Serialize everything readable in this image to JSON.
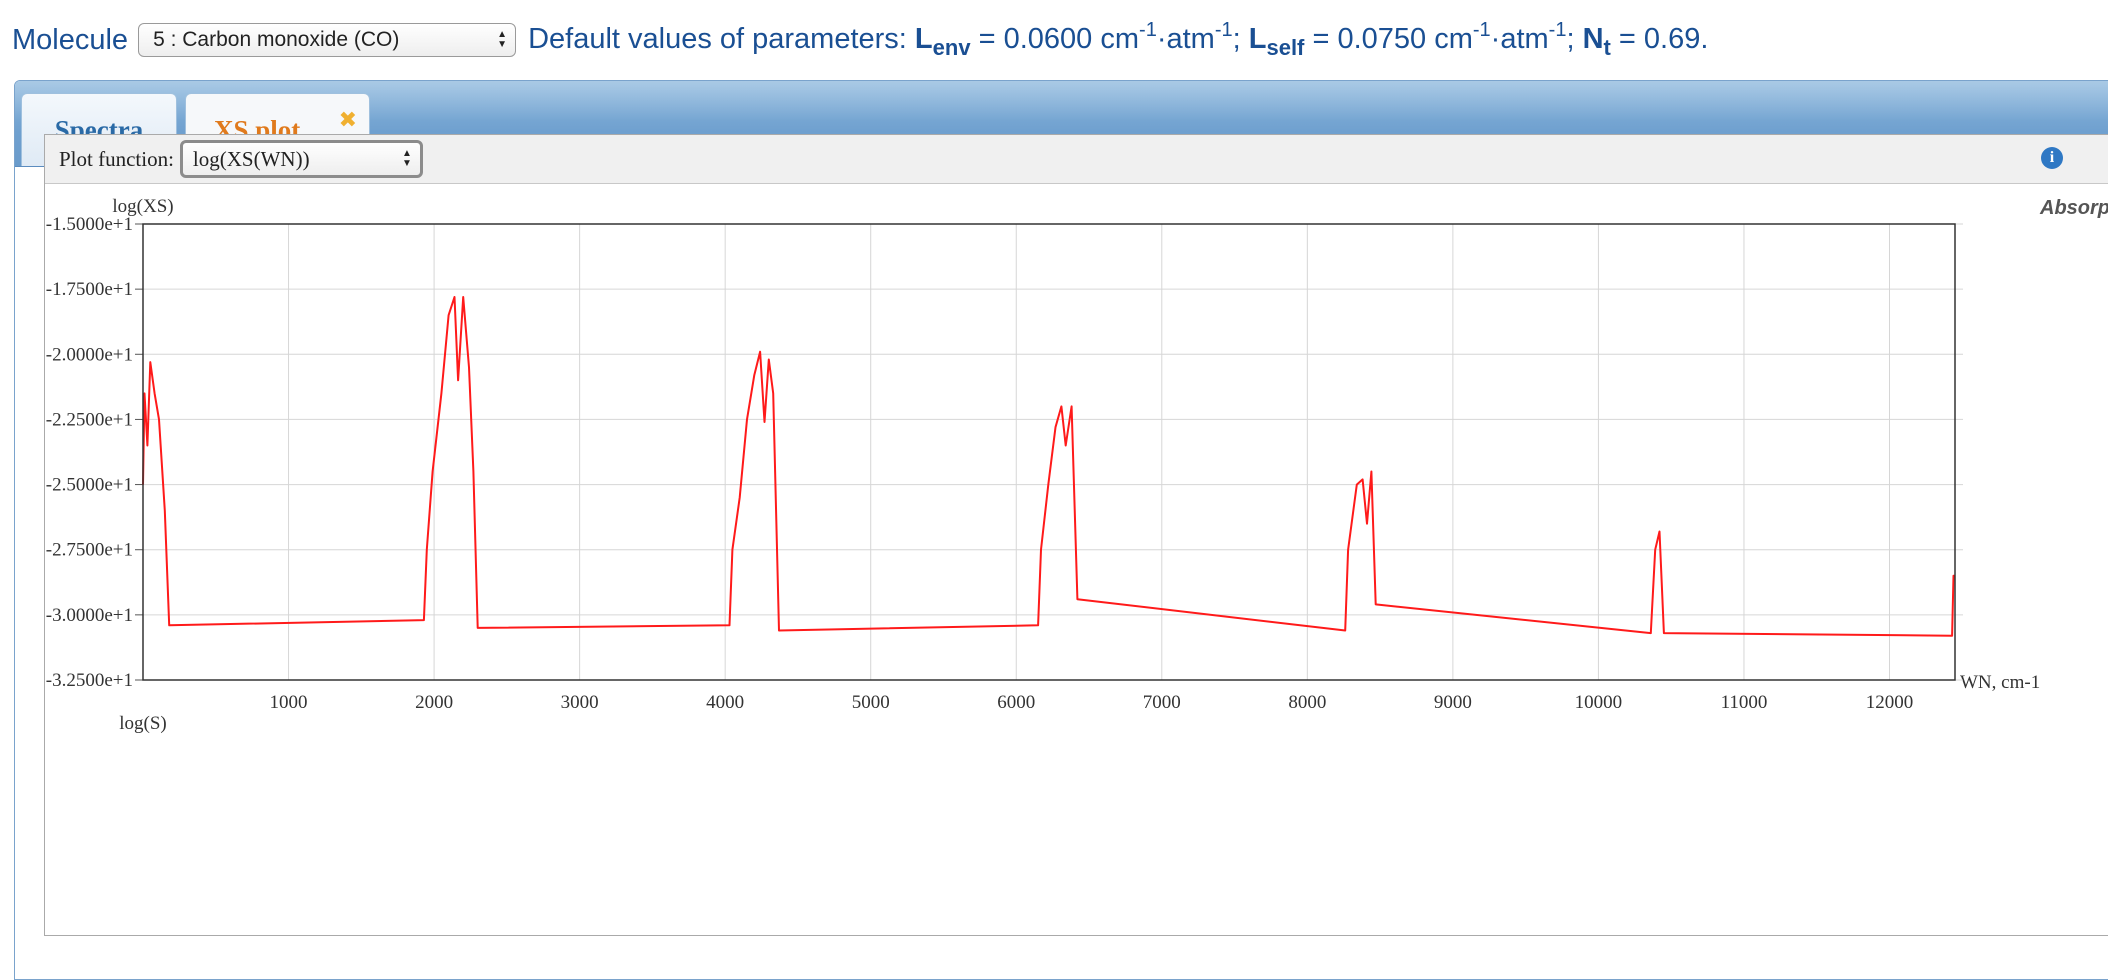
{
  "header": {
    "molecule_label": "Molecule",
    "molecule_selected": "5 : Carbon monoxide (CO)",
    "params_prefix": "Default values of parameters: ",
    "l_env_symbol": "L",
    "l_env_sub": "env",
    "l_env_value": " = 0.0600 cm",
    "exp": "-1",
    "atm": "·atm",
    "sep": "; ",
    "l_self_symbol": "L",
    "l_self_sub": "self",
    "l_self_value": " = 0.0750 cm",
    "nt_symbol": "N",
    "nt_sub": "t",
    "nt_value": " = 0.69."
  },
  "tabs": [
    {
      "label": "Spectra",
      "active": false
    },
    {
      "label": "XS plot",
      "active": true,
      "closable": true
    }
  ],
  "plot": {
    "function_label": "Plot function:",
    "function_selected": "log(XS(WN))",
    "info_icon": "info-icon",
    "close_icon": "close-icon",
    "title_partial": "Absorption C",
    "ylabel": "log(XS)",
    "xlabel": "WN, cm-1",
    "next_ylabel": "log(S)"
  },
  "chart_data": {
    "type": "line",
    "title": "Absorption C",
    "xlabel": "WN, cm-1",
    "ylabel": "log(XS)",
    "xlim": [
      0,
      12450
    ],
    "ylim": [
      -32.5,
      -15
    ],
    "x_ticks": [
      1000,
      2000,
      3000,
      4000,
      5000,
      6000,
      7000,
      8000,
      9000,
      10000,
      11000,
      12000
    ],
    "y_ticks": [
      -15,
      -17.5,
      -20,
      -22.5,
      -25,
      -27.5,
      -30,
      -32.5
    ],
    "y_tick_labels": [
      "-1.5000e+1",
      "-1.7500e+1",
      "-2.0000e+1",
      "-2.2500e+1",
      "-2.5000e+1",
      "-2.7500e+1",
      "-3.0000e+1",
      "-3.2500e+1"
    ],
    "grid": true,
    "color": "#ff1a1a",
    "series": [
      {
        "values": [
          [
            0,
            -25.0
          ],
          [
            10,
            -21.5
          ],
          [
            30,
            -23.5
          ],
          [
            50,
            -20.3
          ],
          [
            80,
            -21.5
          ],
          [
            110,
            -22.5
          ],
          [
            150,
            -26.0
          ],
          [
            180,
            -30.4
          ],
          [
            1930,
            -30.2
          ],
          [
            1950,
            -27.5
          ],
          [
            1990,
            -24.5
          ],
          [
            2050,
            -21.5
          ],
          [
            2100,
            -18.5
          ],
          [
            2140,
            -17.8
          ],
          [
            2165,
            -21.0
          ],
          [
            2200,
            -17.8
          ],
          [
            2240,
            -20.5
          ],
          [
            2270,
            -24.5
          ],
          [
            2300,
            -30.5
          ],
          [
            4030,
            -30.4
          ],
          [
            4050,
            -27.5
          ],
          [
            4100,
            -25.5
          ],
          [
            4150,
            -22.5
          ],
          [
            4200,
            -20.8
          ],
          [
            4240,
            -19.9
          ],
          [
            4270,
            -22.6
          ],
          [
            4300,
            -20.2
          ],
          [
            4330,
            -21.5
          ],
          [
            4370,
            -30.6
          ],
          [
            6150,
            -30.4
          ],
          [
            6170,
            -27.5
          ],
          [
            6220,
            -25.0
          ],
          [
            6270,
            -22.8
          ],
          [
            6310,
            -22.0
          ],
          [
            6340,
            -23.5
          ],
          [
            6380,
            -22.0
          ],
          [
            6420,
            -29.4
          ],
          [
            8260,
            -30.6
          ],
          [
            8280,
            -27.5
          ],
          [
            8340,
            -25.0
          ],
          [
            8380,
            -24.8
          ],
          [
            8410,
            -26.5
          ],
          [
            8440,
            -24.5
          ],
          [
            8470,
            -29.6
          ],
          [
            10360,
            -30.7
          ],
          [
            10390,
            -27.5
          ],
          [
            10420,
            -26.8
          ],
          [
            10450,
            -30.7
          ],
          [
            12430,
            -30.8
          ],
          [
            12440,
            -28.5
          ],
          [
            12450,
            -28.5
          ]
        ]
      }
    ]
  }
}
